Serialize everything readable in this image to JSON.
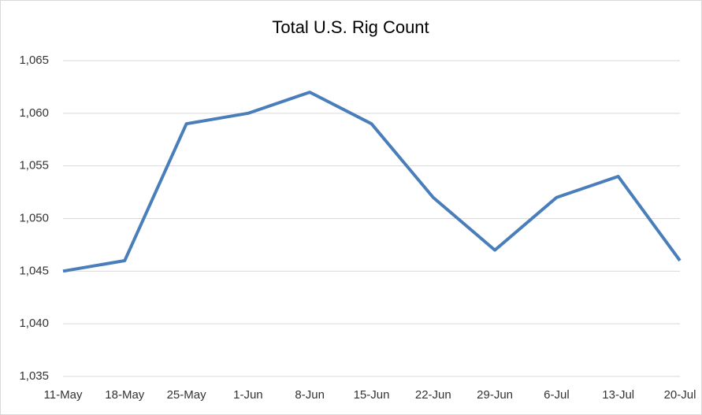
{
  "chart_data": {
    "type": "line",
    "title": "Total U.S. Rig Count",
    "categories": [
      "11-May",
      "18-May",
      "25-May",
      "1-Jun",
      "8-Jun",
      "15-Jun",
      "22-Jun",
      "29-Jun",
      "6-Jul",
      "13-Jul",
      "20-Jul"
    ],
    "series": [
      {
        "name": "Total U.S. Rig Count",
        "color": "#4a7ebb",
        "values": [
          1045,
          1046,
          1059,
          1060,
          1062,
          1059,
          1052,
          1047,
          1052,
          1054,
          1046
        ]
      }
    ],
    "ylim": [
      1035,
      1065
    ],
    "yticks": [
      {
        "value": 1035,
        "label": "1,035"
      },
      {
        "value": 1040,
        "label": "1,040"
      },
      {
        "value": 1045,
        "label": "1,045"
      },
      {
        "value": 1050,
        "label": "1,050"
      },
      {
        "value": 1055,
        "label": "1,055"
      },
      {
        "value": 1060,
        "label": "1,060"
      },
      {
        "value": 1065,
        "label": "1,065"
      }
    ],
    "grid": true
  }
}
